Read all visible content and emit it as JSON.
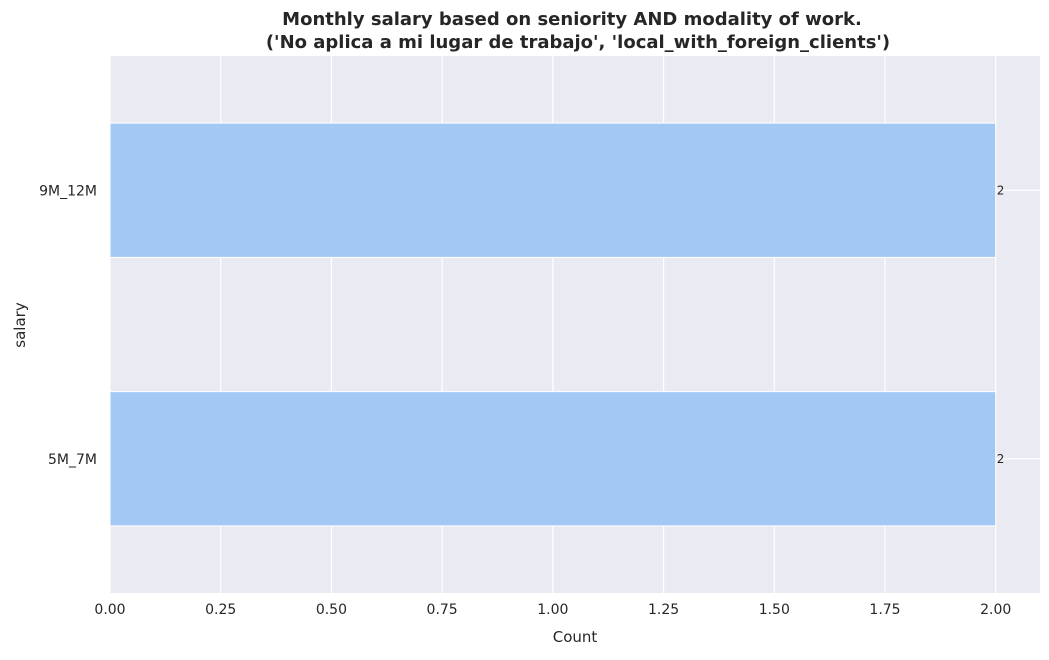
{
  "chart_data": {
    "type": "bar",
    "orientation": "horizontal",
    "title_line1": "Monthly salary based on seniority AND modality of work.",
    "title_line2": "('No aplica a mi lugar de trabajo', 'local_with_foreign_clients')",
    "xlabel": "Count",
    "ylabel": "salary",
    "categories": [
      "9M_12M",
      "5M_7M"
    ],
    "values": [
      2,
      2
    ],
    "data_labels": [
      "2",
      "2"
    ],
    "xlim": [
      0,
      2.1
    ],
    "xticks": [
      0.0,
      0.25,
      0.5,
      0.75,
      1.0,
      1.25,
      1.5,
      1.75,
      2.0
    ],
    "xtick_labels": [
      "0.00",
      "0.25",
      "0.50",
      "0.75",
      "1.00",
      "1.25",
      "1.50",
      "1.75",
      "2.00"
    ],
    "grid": true,
    "colors": {
      "bar": "#a1c9f4",
      "background": "#eaeaf2",
      "grid": "#ffffff"
    }
  }
}
